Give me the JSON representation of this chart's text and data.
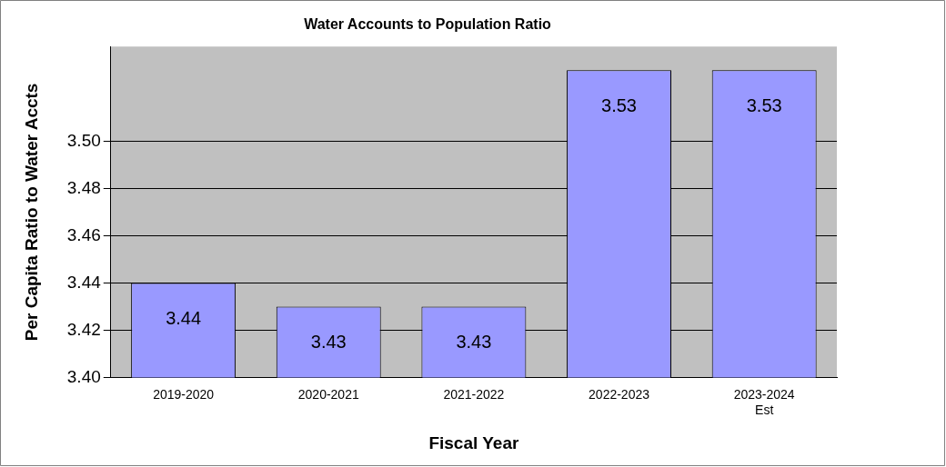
{
  "chart_data": {
    "type": "bar",
    "title": "Water Accounts to Population Ratio",
    "xlabel": "Fiscal Year",
    "ylabel": "Per Capita Ratio to Water Accts",
    "categories": [
      "2019-2020",
      "2020-2021",
      "2021-2022",
      "2022-2023",
      "2023-2024\nEst"
    ],
    "values": [
      3.44,
      3.43,
      3.43,
      3.53,
      3.53
    ],
    "color": "#9999ff",
    "ylim": [
      3.4,
      3.54
    ],
    "yticks": [
      {
        "value": 3.4,
        "label": "3.40"
      },
      {
        "value": 3.42,
        "label": "3.42"
      },
      {
        "value": 3.44,
        "label": "3.44"
      },
      {
        "value": 3.46,
        "label": "3.46"
      },
      {
        "value": 3.48,
        "label": "3.48"
      },
      {
        "value": 3.5,
        "label": "3.50"
      }
    ],
    "grid": "y",
    "data_labels": true,
    "legend": false
  }
}
